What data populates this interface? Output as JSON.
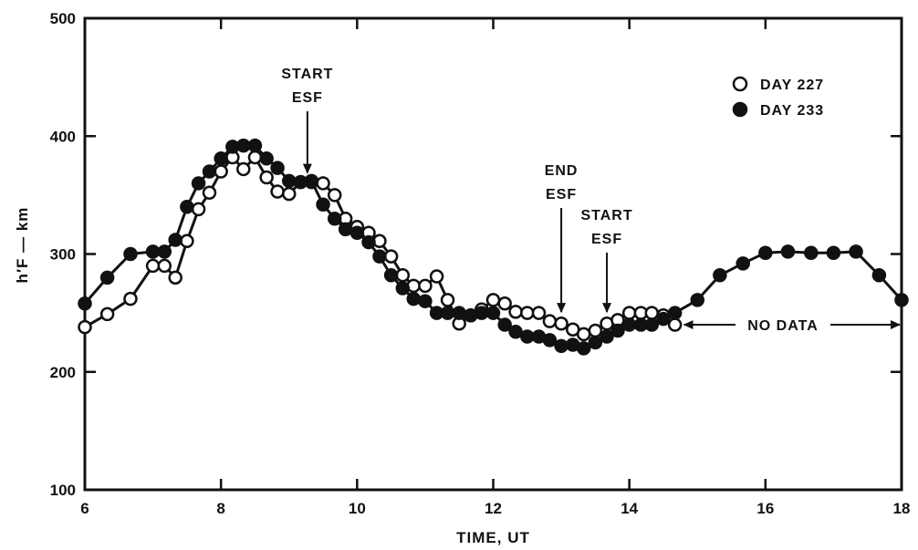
{
  "chart_data": {
    "type": "line",
    "title": "",
    "xlabel": "TIME, UT",
    "ylabel": "h′F — km",
    "xlim": [
      6,
      18
    ],
    "ylim": [
      100,
      500
    ],
    "xticks": [
      6,
      8,
      10,
      12,
      14,
      16,
      18
    ],
    "yticks": [
      100,
      200,
      300,
      400,
      500
    ],
    "grid": false,
    "legend": "top-right",
    "series": [
      {
        "name": "DAY 227",
        "marker": "open-circle",
        "x": [
          6.0,
          6.33,
          6.67,
          7.0,
          7.17,
          7.33,
          7.5,
          7.67,
          7.83,
          8.0,
          8.17,
          8.33,
          8.5,
          8.67,
          8.83,
          9.0,
          9.17,
          9.33,
          9.5,
          9.67,
          9.83,
          10.0,
          10.17,
          10.33,
          10.5,
          10.67,
          10.83,
          11.0,
          11.17,
          11.33,
          11.5,
          11.67,
          11.83,
          12.0,
          12.17,
          12.33,
          12.5,
          12.67,
          12.83,
          13.0,
          13.17,
          13.33,
          13.5,
          13.67,
          13.83,
          14.0,
          14.17,
          14.33,
          14.5,
          14.67
        ],
        "values": [
          238,
          249,
          262,
          290,
          290,
          280,
          311,
          338,
          352,
          370,
          382,
          372,
          382,
          365,
          353,
          351,
          361,
          361,
          360,
          350,
          330,
          323,
          318,
          311,
          298,
          282,
          273,
          273,
          281,
          261,
          241,
          248,
          253,
          261,
          258,
          251,
          250,
          250,
          243,
          241,
          236,
          232,
          235,
          241,
          244,
          250,
          250,
          250,
          248,
          240
        ]
      },
      {
        "name": "DAY 233",
        "marker": "filled-circle",
        "x": [
          6.0,
          6.33,
          6.67,
          7.0,
          7.17,
          7.33,
          7.5,
          7.67,
          7.83,
          8.0,
          8.17,
          8.33,
          8.5,
          8.67,
          8.83,
          9.0,
          9.17,
          9.33,
          9.5,
          9.67,
          9.83,
          10.0,
          10.17,
          10.33,
          10.5,
          10.67,
          10.83,
          11.0,
          11.17,
          11.33,
          11.5,
          11.67,
          11.83,
          12.0,
          12.17,
          12.33,
          12.5,
          12.67,
          12.83,
          13.0,
          13.17,
          13.33,
          13.5,
          13.67,
          13.83,
          14.0,
          14.17,
          14.33,
          14.5,
          14.67,
          15.0,
          15.33,
          15.67,
          16.0,
          16.33,
          16.67,
          17.0,
          17.33,
          17.67,
          18.0
        ],
        "values": [
          258,
          280,
          300,
          302,
          302,
          312,
          340,
          360,
          370,
          381,
          391,
          392,
          392,
          381,
          373,
          362,
          361,
          362,
          342,
          330,
          321,
          318,
          310,
          298,
          282,
          271,
          262,
          260,
          250,
          250,
          250,
          248,
          250,
          250,
          240,
          234,
          230,
          230,
          227,
          222,
          223,
          220,
          225,
          230,
          235,
          240,
          240,
          240,
          245,
          250,
          261,
          282,
          292,
          301,
          302,
          301,
          301,
          302,
          282,
          261
        ]
      }
    ],
    "annotations": [
      {
        "lines": [
          "START",
          "ESF"
        ],
        "x": 9.27,
        "arrow_to": 361
      },
      {
        "lines": [
          "END",
          "ESF"
        ],
        "x": 13.0,
        "arrow_to": 243
      },
      {
        "lines": [
          "START",
          "ESF"
        ],
        "x": 13.67,
        "arrow_to": 243
      },
      {
        "text": "NO DATA",
        "x_from": 14.67,
        "x_to": 18.0,
        "y": 240
      }
    ]
  }
}
